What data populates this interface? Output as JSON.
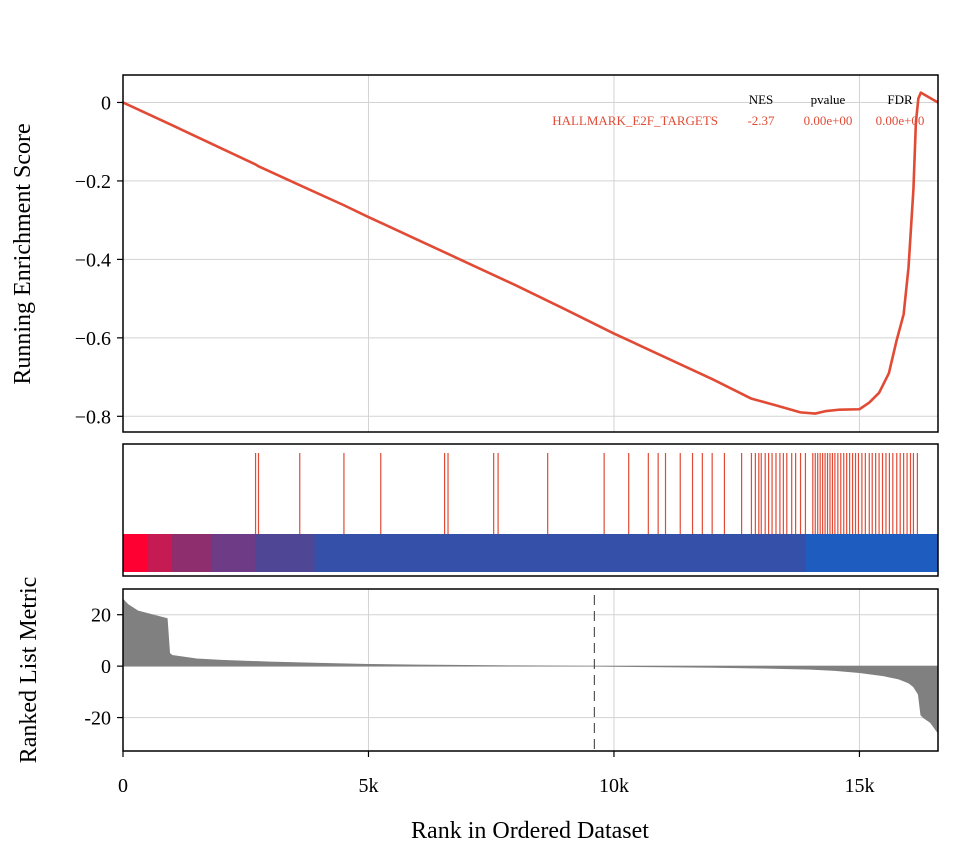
{
  "chart_data": {
    "type": "line",
    "xlabel": "Rank in Ordered Dataset",
    "x_ticks": [
      0,
      5000,
      10000,
      15000
    ],
    "x_tick_labels": [
      "0",
      "5k",
      "10k",
      "15k"
    ],
    "xlim": [
      0,
      16600
    ],
    "grid": true,
    "colors": {
      "curve": "#E14B36",
      "metric_fill": "#808080",
      "grid": "#d3d3d3"
    },
    "es_panel": {
      "ylabel": "Running Enrichment Score",
      "ylim": [
        -0.84,
        0.07
      ],
      "y_ticks": [
        0,
        -0.2,
        -0.4,
        -0.6,
        -0.8
      ],
      "y_tick_labels": [
        "0",
        "−0.2",
        "−0.4",
        "−0.6",
        "−0.8"
      ],
      "series": [
        {
          "name": "HALLMARK_E2F_TARGETS",
          "color": "#E14B36",
          "x": [
            0,
            1000,
            2000,
            2700,
            2750,
            3600,
            4500,
            5000,
            6000,
            7000,
            8000,
            9000,
            10000,
            11000,
            12000,
            12800,
            13300,
            13800,
            14100,
            14300,
            14600,
            15000,
            15200,
            15400,
            15600,
            15750,
            15900,
            16000,
            16100,
            16150,
            16200,
            16250,
            16600
          ],
          "y": [
            0,
            -0.058,
            -0.117,
            -0.158,
            -0.162,
            -0.211,
            -0.262,
            -0.292,
            -0.35,
            -0.408,
            -0.466,
            -0.527,
            -0.589,
            -0.647,
            -0.705,
            -0.755,
            -0.772,
            -0.79,
            -0.793,
            -0.787,
            -0.783,
            -0.782,
            -0.765,
            -0.74,
            -0.69,
            -0.61,
            -0.54,
            -0.42,
            -0.22,
            -0.05,
            0.01,
            0.025,
            0.0
          ]
        }
      ],
      "stats_table": {
        "headers": [
          "NES",
          "pvalue",
          "FDR"
        ],
        "rows": [
          {
            "name": "HALLMARK_E2F_TARGETS",
            "values": [
              "-2.37",
              "0.00e+00",
              "0.00e+00"
            ]
          }
        ]
      }
    },
    "hits_panel": {
      "hit_ranks": [
        2700,
        2760,
        3600,
        4500,
        5250,
        6550,
        6620,
        7550,
        7640,
        8650,
        9800,
        10300,
        10700,
        10900,
        11050,
        11350,
        11600,
        11800,
        12000,
        12250,
        12600,
        12800,
        12880,
        12950,
        13000,
        13080,
        13150,
        13220,
        13300,
        13380,
        13450,
        13520,
        13620,
        13700,
        13800,
        13900,
        14050,
        14100,
        14150,
        14200,
        14250,
        14300,
        14350,
        14400,
        14450,
        14500,
        14560,
        14620,
        14680,
        14740,
        14800,
        14860,
        14920,
        14980,
        15050,
        15120,
        15200,
        15260,
        15330,
        15400,
        15470,
        15540,
        15610,
        15680,
        15760,
        15830,
        15900,
        15970,
        16040,
        16100,
        16180
      ],
      "color_bar": [
        {
          "from": 0,
          "to": 500,
          "color": "#FF0033"
        },
        {
          "from": 500,
          "to": 1000,
          "color": "#C51A52"
        },
        {
          "from": 1000,
          "to": 1800,
          "color": "#8E2E6E"
        },
        {
          "from": 1800,
          "to": 2700,
          "color": "#6E3C86"
        },
        {
          "from": 2700,
          "to": 3900,
          "color": "#504696"
        },
        {
          "from": 3900,
          "to": 13900,
          "color": "#3550A8"
        },
        {
          "from": 13900,
          "to": 16600,
          "color": "#1F5CC0"
        }
      ]
    },
    "metric_panel": {
      "ylabel": "Ranked List Metric",
      "ylim": [
        -33,
        30
      ],
      "y_ticks": [
        20,
        0,
        -20
      ],
      "y_tick_labels": [
        "20",
        "0",
        "-20"
      ],
      "zero_cross_rank": 9600,
      "x": [
        0,
        100,
        300,
        600,
        900,
        950,
        1000,
        1500,
        2000,
        3000,
        4000,
        5000,
        6000,
        7000,
        8000,
        9000,
        9600,
        10000,
        11000,
        12000,
        13000,
        14000,
        14500,
        15000,
        15500,
        15800,
        16000,
        16100,
        16200,
        16250,
        16300,
        16450,
        16600
      ],
      "values": [
        26,
        24,
        21.5,
        20,
        18.5,
        5,
        4.2,
        2.8,
        2.3,
        1.6,
        1.1,
        0.7,
        0.45,
        0.28,
        0.14,
        0.05,
        0,
        -0.08,
        -0.25,
        -0.45,
        -0.75,
        -1.2,
        -1.7,
        -2.5,
        -3.8,
        -5,
        -6.5,
        -8,
        -11,
        -19,
        -20,
        -22,
        -26
      ]
    }
  }
}
